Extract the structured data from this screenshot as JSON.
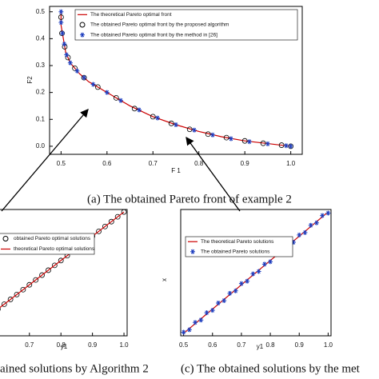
{
  "chart_data": [
    {
      "type": "scatter",
      "caption": "(a)  The obtained Pareto front of example 2",
      "xlabel": "F 1",
      "ylabel": "F2",
      "xlim": [
        0.475,
        1.025
      ],
      "ylim": [
        -0.03,
        0.52
      ],
      "xticks": [
        0.5,
        0.6,
        0.7,
        0.8,
        0.9,
        {
          "value": 1,
          "label": "1.0"
        }
      ],
      "yticks": [
        {
          "value": 0,
          "label": "0.0"
        },
        0.1,
        0.2,
        0.3,
        0.4,
        0.5
      ],
      "legend": "upper right",
      "series": [
        {
          "name": "The theoretical Pareto optimal front",
          "color": "#cc0000",
          "marker": "line",
          "x": [
            0.5,
            0.5,
            0.505,
            0.51,
            0.52,
            0.54,
            0.56,
            0.6,
            0.65,
            0.7,
            0.75,
            0.8,
            0.85,
            0.9,
            0.95,
            1.0
          ],
          "values": [
            0.5,
            0.45,
            0.4,
            0.35,
            0.31,
            0.27,
            0.24,
            0.2,
            0.15,
            0.11,
            0.08,
            0.055,
            0.035,
            0.02,
            0.01,
            0
          ]
        },
        {
          "name": "The obtained Pareto optimal front by the proposed algorithm",
          "color": "#000000",
          "marker": "circle",
          "x": [
            0.5,
            0.502,
            0.508,
            0.515,
            0.53,
            0.55,
            0.58,
            0.62,
            0.66,
            0.7,
            0.74,
            0.78,
            0.82,
            0.86,
            0.9,
            0.94,
            0.98,
            1.0
          ],
          "values": [
            0.48,
            0.42,
            0.37,
            0.33,
            0.29,
            0.255,
            0.22,
            0.18,
            0.14,
            0.11,
            0.085,
            0.063,
            0.045,
            0.032,
            0.02,
            0.011,
            0.004,
            0
          ]
        },
        {
          "name": "The obtained Pareto optimal front by the method in [26]",
          "color": "#1f3fbf",
          "marker": "asterisk",
          "x": [
            0.5,
            0.5,
            0.503,
            0.507,
            0.512,
            0.52,
            0.535,
            0.55,
            0.57,
            0.6,
            0.63,
            0.67,
            0.71,
            0.75,
            0.79,
            0.83,
            0.87,
            0.91,
            0.95,
            0.99,
            1.0
          ],
          "values": [
            0.5,
            0.46,
            0.42,
            0.38,
            0.34,
            0.31,
            0.28,
            0.255,
            0.23,
            0.2,
            0.17,
            0.135,
            0.105,
            0.08,
            0.06,
            0.042,
            0.028,
            0.017,
            0.009,
            0.002,
            0
          ]
        }
      ]
    },
    {
      "type": "scatter",
      "caption": "ained solutions by Algorithm 2",
      "xlabel": "y1",
      "xlim": [
        0.49,
        1.01
      ],
      "ylim": [
        0.49,
        1.01
      ],
      "xticks": [
        0.7,
        0.8,
        0.9,
        {
          "value": 1,
          "label": "1.0"
        }
      ],
      "legend": "upper left",
      "series": [
        {
          "name": "obtained Pareto optimal solutions",
          "color": "#000000",
          "marker": "circle",
          "x": [
            0.6,
            0.62,
            0.64,
            0.66,
            0.68,
            0.7,
            0.72,
            0.74,
            0.76,
            0.78,
            0.8,
            0.82,
            0.84,
            0.86,
            0.88,
            0.9,
            0.92,
            0.94,
            0.96,
            0.98,
            1.0
          ],
          "values": [
            0.6,
            0.62,
            0.64,
            0.66,
            0.68,
            0.7,
            0.72,
            0.74,
            0.76,
            0.78,
            0.8,
            0.82,
            0.84,
            0.86,
            0.88,
            0.9,
            0.92,
            0.94,
            0.96,
            0.98,
            1.0
          ]
        },
        {
          "name": "theoretical Pareto optimal solutions",
          "color": "#cc0000",
          "marker": "line",
          "x": [
            0.6,
            1.0
          ],
          "values": [
            0.6,
            1.0
          ]
        }
      ]
    },
    {
      "type": "scatter",
      "caption": "(c) The obtained solutions by the met",
      "xlabel": "y1",
      "ylabel": "x",
      "xlim": [
        0.49,
        1.01
      ],
      "ylim": [
        0.49,
        1.01
      ],
      "xticks": [
        0.5,
        0.6,
        0.7,
        0.8,
        0.9,
        {
          "value": 1,
          "label": "1.0"
        }
      ],
      "legend": "upper left",
      "series": [
        {
          "name": "The theoretical Pareto solutions",
          "color": "#cc0000",
          "marker": "line",
          "x": [
            0.5,
            1.0
          ],
          "values": [
            0.5,
            1.0
          ]
        },
        {
          "name": "The obtained Pareto solutions",
          "color": "#1f3fbf",
          "marker": "asterisk",
          "x": [
            0.5,
            0.52,
            0.54,
            0.56,
            0.58,
            0.6,
            0.62,
            0.64,
            0.66,
            0.68,
            0.7,
            0.72,
            0.74,
            0.76,
            0.78,
            0.8,
            0.82,
            0.84,
            0.86,
            0.88,
            0.9,
            0.92,
            0.94,
            0.96,
            0.98,
            1.0
          ],
          "values": [
            0.505,
            0.515,
            0.545,
            0.555,
            0.585,
            0.595,
            0.625,
            0.635,
            0.665,
            0.675,
            0.705,
            0.715,
            0.745,
            0.755,
            0.785,
            0.795,
            0.825,
            0.835,
            0.865,
            0.875,
            0.905,
            0.915,
            0.945,
            0.955,
            0.985,
            0.995
          ]
        }
      ]
    }
  ]
}
